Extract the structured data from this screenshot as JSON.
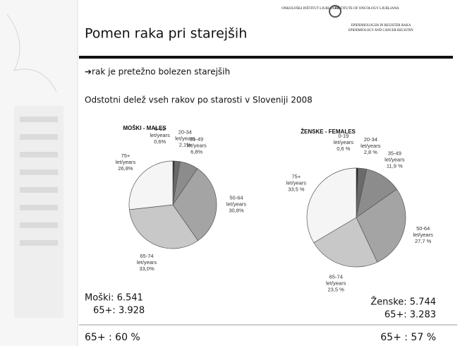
{
  "slide": {
    "title": "Pomen raka pri starejših",
    "logo": [
      "ONKOLOŠKI INŠTITUT LJUBLJANA",
      "INSTITUTE OF ONCOLOGY LJUBLJANA",
      "EPIDEMIOLOGIJA IN REGISTER RAKA",
      "EPIDEMIOLOGY AND CANCER REGISTRY"
    ],
    "bullet": "➔rak je pretežno bolezen starejših",
    "subtitle": "Odstotni delež vseh rakov po starosti v Sloveniji 2008",
    "males_total": "Moški:  6.541",
    "males_65": "65+:  3.928",
    "males_share": "65+ : 60 %",
    "females_total": "Ženske: 5.744",
    "females_65": "65+: 3.283",
    "females_share": "65+ : 57 %"
  },
  "chart_data": [
    {
      "type": "pie",
      "title": "MOŠKI - MALES",
      "unit": "let/years",
      "categories": [
        "0-19",
        "20-34",
        "35-49",
        "50-64",
        "65-74",
        "75+"
      ],
      "values": [
        0.6,
        2.1,
        6.8,
        30.8,
        33.0,
        26.8
      ],
      "value_labels": [
        "0,6%",
        "2,1%",
        "6,8%",
        "30,8%",
        "33,0%",
        "26,8%"
      ],
      "colors": [
        "#1e1e1e",
        "#6a6a6a",
        "#8c8c8c",
        "#a4a4a4",
        "#c8c8c8",
        "#f5f5f5"
      ]
    },
    {
      "type": "pie",
      "title": "ŽENSKE - FEMALES",
      "unit": "let/years",
      "categories": [
        "0-19",
        "20-34",
        "35-49",
        "50-64",
        "65-74",
        "75+"
      ],
      "values": [
        0.6,
        2.8,
        11.9,
        27.7,
        23.5,
        33.5
      ],
      "value_labels": [
        "0,6 %",
        "2,8 %",
        "11,9 %",
        "27,7 %",
        "23,5 %",
        "33,5 %"
      ],
      "colors": [
        "#1e1e1e",
        "#6a6a6a",
        "#8c8c8c",
        "#a4a4a4",
        "#c8c8c8",
        "#f5f5f5"
      ]
    }
  ]
}
